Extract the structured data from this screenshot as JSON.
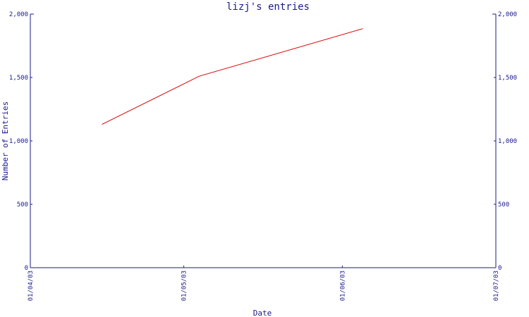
{
  "chart_data": {
    "type": "line",
    "title": "lizj's entries",
    "xlabel": "Date",
    "ylabel": "Number of Entries",
    "x_ticks": [
      "01/04/03",
      "01/05/03",
      "01/06/03",
      "01/07/03"
    ],
    "y_ticks": [
      "0",
      "500",
      "1,000",
      "1,500",
      "2,000"
    ],
    "ylim": [
      0,
      2000
    ],
    "xlim": [
      "2003-04-01",
      "2003-07-01"
    ],
    "series": [
      {
        "x": [
          "2003-04-15",
          "2003-05-04",
          "2003-06-05"
        ],
        "y": [
          1130,
          1510,
          1885
        ]
      }
    ],
    "grid": false,
    "colors": {
      "axis": "#1a1a8c",
      "line": "#dd0000"
    }
  }
}
